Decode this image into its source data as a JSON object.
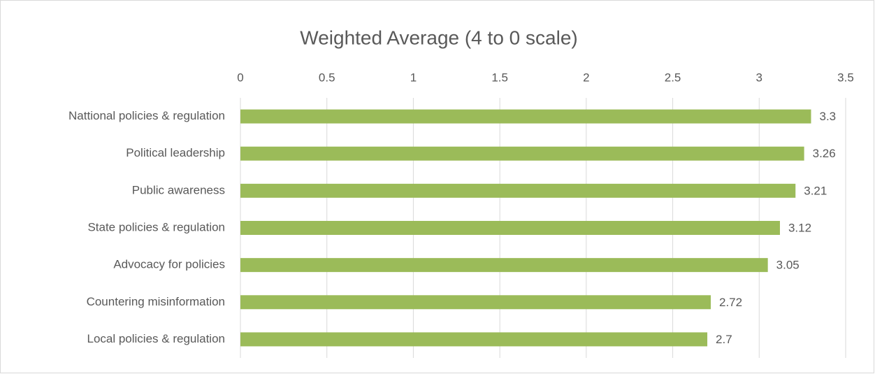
{
  "chart_data": {
    "type": "bar",
    "orientation": "horizontal",
    "title": "Weighted Average (4 to 0 scale)",
    "categories": [
      "Nattional policies & regulation",
      "Political leadership",
      "Public awareness",
      "State policies & regulation",
      "Advocacy for policies",
      "Countering misinformation",
      "Local policies & regulation"
    ],
    "values": [
      3.3,
      3.26,
      3.21,
      3.12,
      3.05,
      2.72,
      2.7
    ],
    "color": "#9bbb59",
    "xlim": [
      0,
      3.5
    ],
    "xticks": [
      0,
      0.5,
      1,
      1.5,
      2,
      2.5,
      3,
      3.5
    ],
    "grid": true
  }
}
